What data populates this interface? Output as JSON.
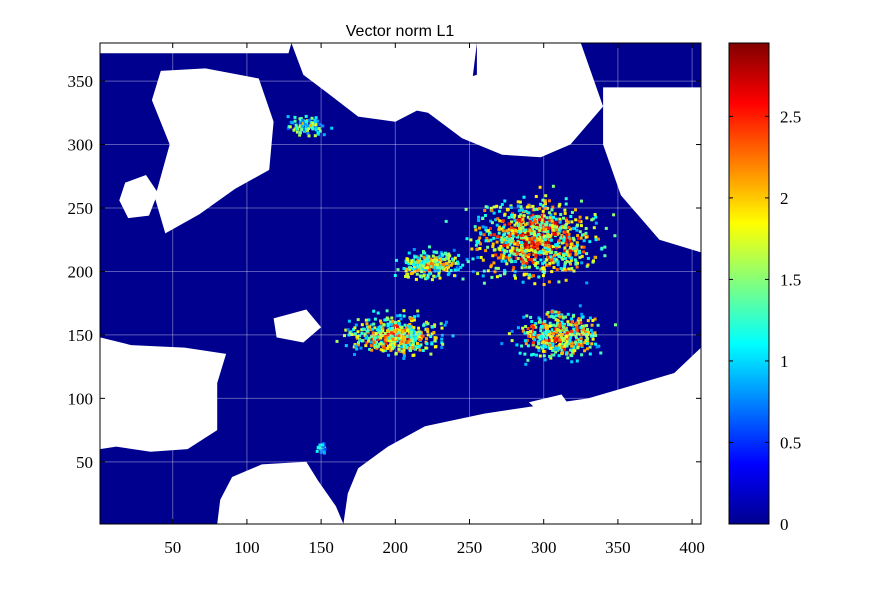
{
  "chart_data": {
    "type": "heatmap",
    "title": "Vector norm L1",
    "xlabel": "",
    "ylabel": "",
    "xlim": [
      1,
      406
    ],
    "ylim": [
      1,
      380
    ],
    "xticks": [
      50,
      100,
      150,
      200,
      250,
      300,
      350,
      400
    ],
    "yticks": [
      50,
      100,
      150,
      200,
      250,
      300,
      350
    ],
    "grid": true,
    "colormap": "jet",
    "colorbar": {
      "clim": [
        0,
        2.95
      ],
      "ticks": [
        0,
        0.5,
        1,
        1.5,
        2,
        2.5
      ],
      "tick_labels": [
        "0",
        "0.5",
        "1",
        "1.5",
        "2",
        "2.5"
      ],
      "placement": "right"
    },
    "background_value": 0,
    "background_color": "#00008f",
    "missing_color": "#ffffff",
    "missing_regions": [
      {
        "name": "large-west-island",
        "polygon": [
          [
            42,
            358
          ],
          [
            72,
            360
          ],
          [
            108,
            352
          ],
          [
            118,
            318
          ],
          [
            115,
            280
          ],
          [
            92,
            265
          ],
          [
            68,
            245
          ],
          [
            45,
            230
          ],
          [
            38,
            258
          ],
          [
            48,
            300
          ],
          [
            36,
            335
          ]
        ]
      },
      {
        "name": "southwest-landmass",
        "polygon": [
          [
            1,
            148
          ],
          [
            22,
            142
          ],
          [
            58,
            140
          ],
          [
            86,
            135
          ],
          [
            80,
            112
          ],
          [
            80,
            75
          ],
          [
            60,
            60
          ],
          [
            35,
            58
          ],
          [
            12,
            62
          ],
          [
            1,
            60
          ]
        ]
      },
      {
        "name": "south-central-landmass",
        "polygon": [
          [
            80,
            1
          ],
          [
            165,
            1
          ],
          [
            160,
            15
          ],
          [
            148,
            35
          ],
          [
            140,
            50
          ],
          [
            110,
            48
          ],
          [
            90,
            38
          ],
          [
            82,
            20
          ]
        ]
      },
      {
        "name": "south-east-landmass",
        "polygon": [
          [
            165,
            1
          ],
          [
            406,
            1
          ],
          [
            406,
            140
          ],
          [
            388,
            120
          ],
          [
            365,
            112
          ],
          [
            330,
            100
          ],
          [
            300,
            95
          ],
          [
            260,
            88
          ],
          [
            220,
            78
          ],
          [
            195,
            62
          ],
          [
            175,
            45
          ],
          [
            168,
            25
          ]
        ]
      },
      {
        "name": "north-central-island",
        "polygon": [
          [
            130,
            380
          ],
          [
            255,
            380
          ],
          [
            252,
            352
          ],
          [
            225,
            333
          ],
          [
            200,
            318
          ],
          [
            175,
            322
          ],
          [
            155,
            340
          ],
          [
            138,
            355
          ]
        ]
      },
      {
        "name": "north-east-archipelago",
        "polygon": [
          [
            200,
            330
          ],
          [
            222,
            325
          ],
          [
            245,
            305
          ],
          [
            272,
            292
          ],
          [
            298,
            290
          ],
          [
            318,
            300
          ],
          [
            340,
            330
          ],
          [
            325,
            380
          ],
          [
            255,
            380
          ],
          [
            255,
            355
          ],
          [
            228,
            345
          ]
        ]
      },
      {
        "name": "east-coast-landmass",
        "polygon": [
          [
            340,
            345
          ],
          [
            406,
            345
          ],
          [
            406,
            215
          ],
          [
            378,
            225
          ],
          [
            352,
            260
          ],
          [
            340,
            300
          ]
        ]
      },
      {
        "name": "far-west-islet",
        "polygon": [
          [
            18,
            270
          ],
          [
            32,
            276
          ],
          [
            40,
            262
          ],
          [
            34,
            244
          ],
          [
            20,
            242
          ],
          [
            14,
            256
          ]
        ]
      },
      {
        "name": "west-mid-island",
        "polygon": [
          [
            118,
            163
          ],
          [
            140,
            170
          ],
          [
            150,
            156
          ],
          [
            138,
            144
          ],
          [
            120,
            148
          ]
        ]
      },
      {
        "name": "north-strip",
        "polygon": [
          [
            1,
            380
          ],
          [
            130,
            380
          ],
          [
            128,
            372
          ],
          [
            1,
            372
          ]
        ]
      },
      {
        "name": "east-small-bay",
        "polygon": [
          [
            290,
            97
          ],
          [
            312,
            103
          ],
          [
            320,
            90
          ],
          [
            300,
            86
          ]
        ]
      }
    ],
    "hotspots": [
      {
        "name": "central-northeast-block",
        "center": [
          295,
          225
        ],
        "spread": [
          38,
          28
        ],
        "peak": 2.9,
        "count": 900
      },
      {
        "name": "central-west-arm",
        "center": [
          225,
          205
        ],
        "spread": [
          20,
          10
        ],
        "peak": 2.5,
        "count": 260
      },
      {
        "name": "south-west-block",
        "center": [
          200,
          150
        ],
        "spread": [
          28,
          14
        ],
        "peak": 2.7,
        "count": 480
      },
      {
        "name": "southeast-block",
        "center": [
          310,
          150
        ],
        "spread": [
          25,
          18
        ],
        "peak": 2.8,
        "count": 420
      },
      {
        "name": "north-patch",
        "center": [
          140,
          315
        ],
        "spread": [
          12,
          8
        ],
        "peak": 2.1,
        "count": 90
      },
      {
        "name": "south-small-patch",
        "center": [
          150,
          60
        ],
        "spread": [
          4,
          4
        ],
        "peak": 1.8,
        "count": 20
      }
    ]
  }
}
